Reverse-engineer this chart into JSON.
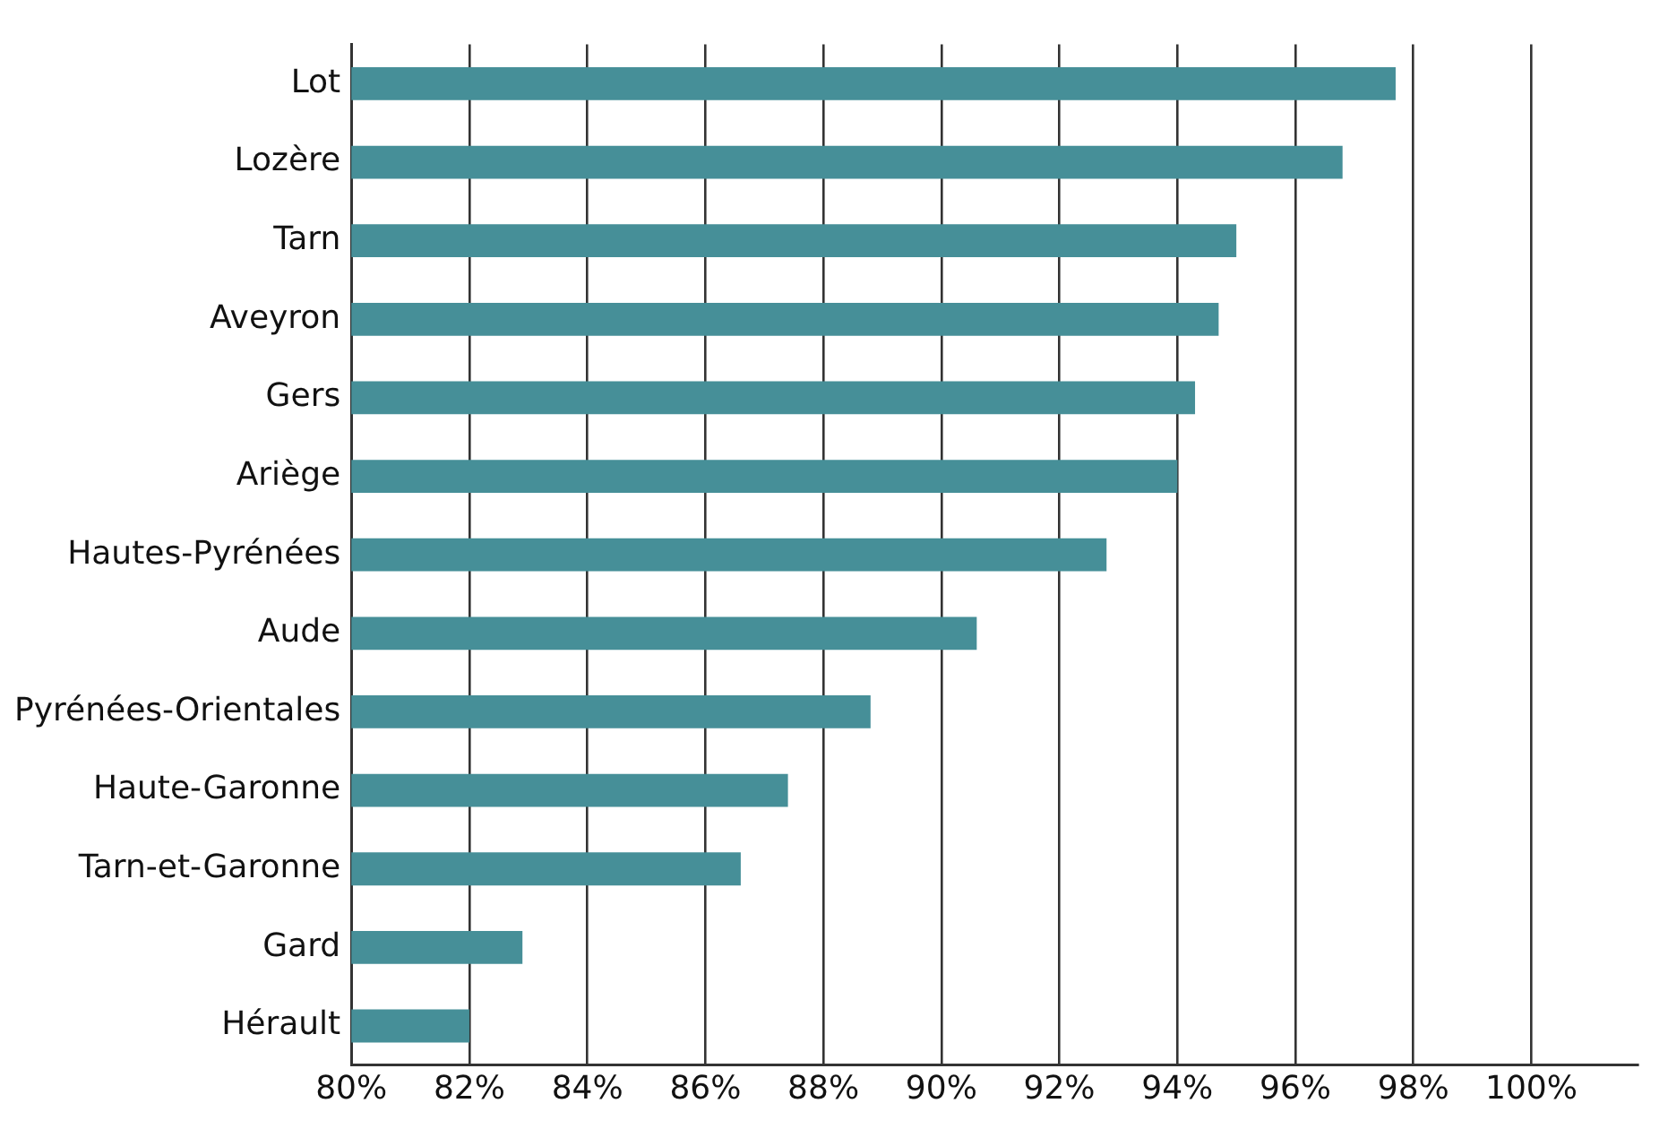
{
  "chart_data": {
    "type": "bar",
    "orientation": "horizontal",
    "categories": [
      "Lot",
      "Lozère",
      "Tarn",
      "Aveyron",
      "Gers",
      "Ariège",
      "Hautes-Pyrénées",
      "Aude",
      "Pyrénées-Orientales",
      "Haute-Garonne",
      "Tarn-et-Garonne",
      "Gard",
      "Hérault"
    ],
    "values": [
      97.7,
      96.8,
      95.0,
      94.7,
      94.3,
      94.0,
      92.8,
      90.6,
      88.8,
      87.4,
      86.6,
      82.9,
      82.0
    ],
    "color": "#468f98",
    "xlim": [
      80,
      101.8
    ],
    "xticks": [
      {
        "value": 80,
        "label": "80%"
      },
      {
        "value": 82,
        "label": "82%"
      },
      {
        "value": 84,
        "label": "84%"
      },
      {
        "value": 86,
        "label": "86%"
      },
      {
        "value": 88,
        "label": "88%"
      },
      {
        "value": 90,
        "label": "90%"
      },
      {
        "value": 92,
        "label": "92%"
      },
      {
        "value": 94,
        "label": "94%"
      },
      {
        "value": 96,
        "label": "96%"
      },
      {
        "value": 98,
        "label": "98%"
      },
      {
        "value": 100,
        "label": "100%"
      }
    ],
    "grid": "x",
    "legend": false
  }
}
